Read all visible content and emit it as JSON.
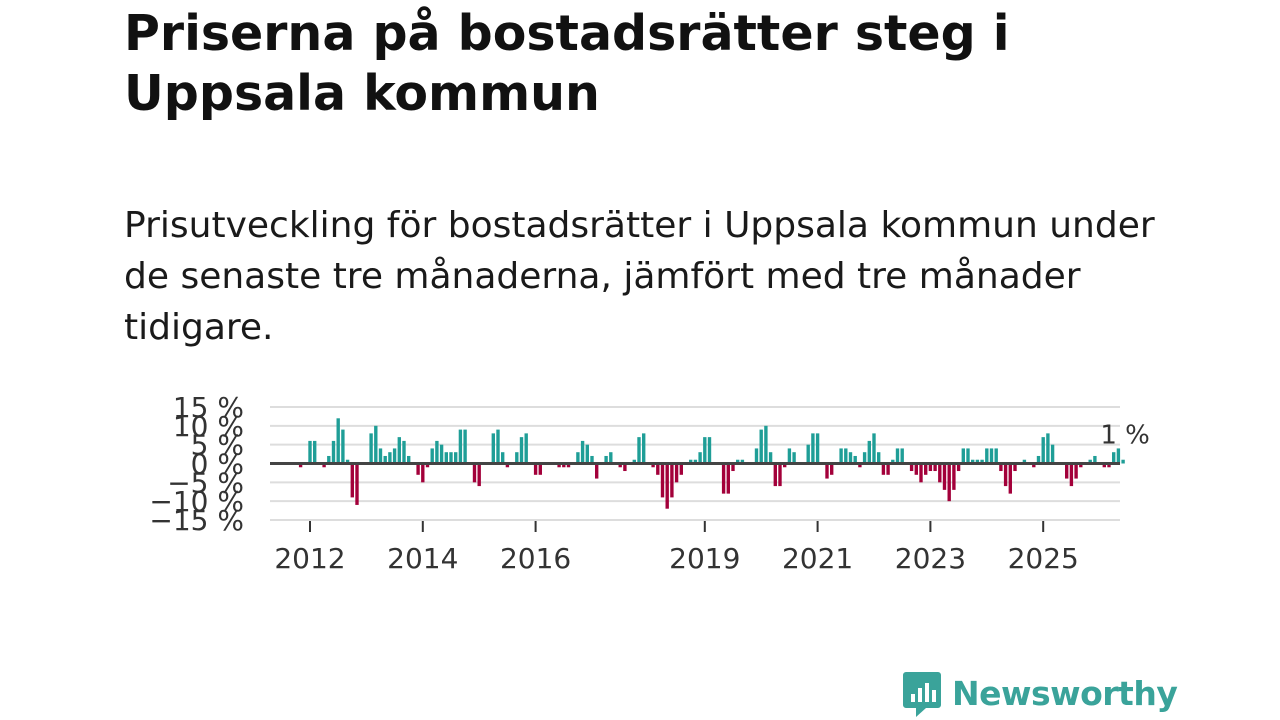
{
  "title": "Priserna på bostadsrätter steg i Uppsala kommun",
  "subtitle": "Prisutveckling för bostadsrätter i Uppsala kommun under de senaste tre månaderna, jämfört med tre månader tidigare.",
  "logo": {
    "text": "Newsworthy",
    "icon": "newsworthy-logo-icon"
  },
  "colors": {
    "positive": "#1f9e97",
    "negative": "#a3003a",
    "zero_line": "#444444",
    "grid": "#dddddd"
  },
  "chart_data": {
    "type": "bar",
    "title": "Prisutveckling för bostadsrätter i Uppsala kommun",
    "xlabel": "",
    "ylabel": "",
    "ylim": [
      -15,
      15
    ],
    "yticks": [
      15,
      10,
      5,
      0,
      -5,
      -10,
      -15
    ],
    "ytick_labels": [
      "15 %",
      "10 %",
      "5 %",
      "0 %",
      "−5 %",
      "−10 %",
      "−15 %"
    ],
    "xticks": [
      2012,
      2014,
      2016,
      2019,
      2021,
      2023,
      2025
    ],
    "xtick_labels": [
      "2012",
      "2014",
      "2016",
      "2019",
      "2021",
      "2023",
      "2025"
    ],
    "grid": true,
    "start": "2011-11",
    "frequency": "monthly",
    "annotation": {
      "label": "1 %",
      "target": "last"
    },
    "values": [
      -1,
      0,
      6,
      6,
      0,
      -1,
      2,
      6,
      12,
      9,
      1,
      -9,
      -11,
      0,
      0,
      8,
      10,
      4,
      2,
      3,
      4,
      7,
      6,
      2,
      0,
      -3,
      -5,
      -1,
      4,
      6,
      5,
      3,
      3,
      3,
      9,
      9,
      0,
      -5,
      -6,
      0,
      0,
      8,
      9,
      3,
      -1,
      0,
      3,
      7,
      8,
      0,
      -3,
      -3,
      0,
      0,
      0,
      -1,
      -1,
      -1,
      0,
      3,
      6,
      5,
      2,
      -4,
      0,
      2,
      3,
      0,
      -1,
      -2,
      0,
      1,
      7,
      8,
      0,
      -1,
      -3,
      -9,
      -12,
      -9,
      -5,
      -3,
      0,
      1,
      1,
      3,
      7,
      7,
      0,
      0,
      -8,
      -8,
      -2,
      1,
      1,
      0,
      0,
      4,
      9,
      10,
      3,
      -6,
      -6,
      -1,
      4,
      3,
      0,
      0,
      5,
      8,
      8,
      0,
      -4,
      -3,
      0,
      4,
      4,
      3,
      2,
      -1,
      3,
      6,
      8,
      3,
      -3,
      -3,
      1,
      4,
      4,
      0,
      -2,
      -3,
      -5,
      -3,
      -2,
      -2,
      -5,
      -7,
      -10,
      -7,
      -2,
      4,
      4,
      1,
      1,
      1,
      4,
      4,
      4,
      -2,
      -6,
      -8,
      -2,
      0,
      1,
      0,
      -1,
      2,
      7,
      8,
      5,
      0,
      0,
      -4,
      -6,
      -4,
      -1,
      0,
      1,
      2,
      0,
      -1,
      -1,
      3,
      4,
      1
    ]
  }
}
